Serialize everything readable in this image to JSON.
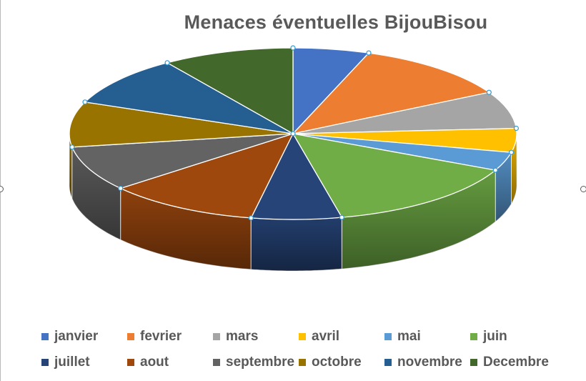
{
  "chart_data": {
    "type": "pie",
    "title": "Menaces éventuelles BijouBisou",
    "labels": [
      "janvier",
      "fevrier",
      "mars",
      "avril",
      "mai",
      "juin",
      "juillet",
      "aout",
      "septembre",
      "octobre",
      "novembre",
      "Decembre"
    ],
    "values": [
      5.5,
      11.5,
      7.0,
      4.5,
      3.5,
      14.5,
      6.5,
      11.0,
      8.5,
      8.5,
      9.5,
      9.5
    ],
    "colors": [
      "#4472C4",
      "#ED7D31",
      "#A5A5A5",
      "#FFC000",
      "#5B9BD5",
      "#70AD47",
      "#264478",
      "#9E480E",
      "#636363",
      "#997300",
      "#255E91",
      "#43682B"
    ],
    "legend_position": "bottom",
    "style": "3d-pie"
  }
}
